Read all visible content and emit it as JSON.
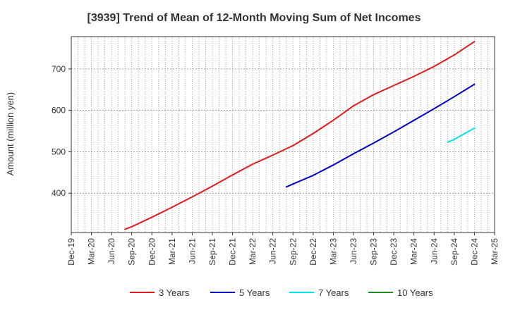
{
  "chart_data": {
    "type": "line",
    "title": "[3939]  Trend of Mean of 12-Month Moving Sum of Net Incomes",
    "xlabel": "",
    "ylabel": "Amount (million yen)",
    "ylim": [
      305,
      778
    ],
    "yticks": [
      400,
      500,
      600,
      700
    ],
    "x_tick_labels": [
      "Dec-19",
      "Mar-20",
      "Jun-20",
      "Sep-20",
      "Dec-20",
      "Mar-21",
      "Jun-21",
      "Sep-21",
      "Dec-21",
      "Mar-22",
      "Jun-22",
      "Sep-22",
      "Dec-22",
      "Mar-23",
      "Jun-23",
      "Sep-23",
      "Dec-23",
      "Mar-24",
      "Jun-24",
      "Sep-24",
      "Dec-24",
      "Mar-25"
    ],
    "grid": true,
    "legend_position": "bottom",
    "series": [
      {
        "name": "3 Years",
        "color": "#e31a1c",
        "points": [
          [
            "Aug-20",
            313
          ],
          [
            "Sep-20",
            319
          ],
          [
            "Dec-20",
            342
          ],
          [
            "Mar-21",
            366
          ],
          [
            "Jun-21",
            391
          ],
          [
            "Sep-21",
            417
          ],
          [
            "Dec-21",
            444
          ],
          [
            "Mar-22",
            470
          ],
          [
            "Jun-22",
            492
          ],
          [
            "Sep-22",
            515
          ],
          [
            "Dec-22",
            544
          ],
          [
            "Mar-23",
            576
          ],
          [
            "Jun-23",
            611
          ],
          [
            "Sep-23",
            638
          ],
          [
            "Dec-23",
            660
          ],
          [
            "Mar-24",
            682
          ],
          [
            "Jun-24",
            706
          ],
          [
            "Sep-24",
            734
          ],
          [
            "Dec-24",
            766
          ]
        ]
      },
      {
        "name": "5 Years",
        "color": "#0000cc",
        "points": [
          [
            "Aug-22",
            415
          ],
          [
            "Sep-22",
            422
          ],
          [
            "Dec-22",
            443
          ],
          [
            "Mar-23",
            468
          ],
          [
            "Jun-23",
            495
          ],
          [
            "Sep-23",
            521
          ],
          [
            "Dec-23",
            548
          ],
          [
            "Mar-24",
            576
          ],
          [
            "Jun-24",
            604
          ],
          [
            "Sep-24",
            633
          ],
          [
            "Dec-24",
            663
          ]
        ]
      },
      {
        "name": "7 Years",
        "color": "#00e5ee",
        "points": [
          [
            "Aug-24",
            523
          ],
          [
            "Sep-24",
            530
          ],
          [
            "Dec-24",
            557
          ]
        ]
      },
      {
        "name": "10 Years",
        "color": "#228b22",
        "points": []
      }
    ]
  }
}
